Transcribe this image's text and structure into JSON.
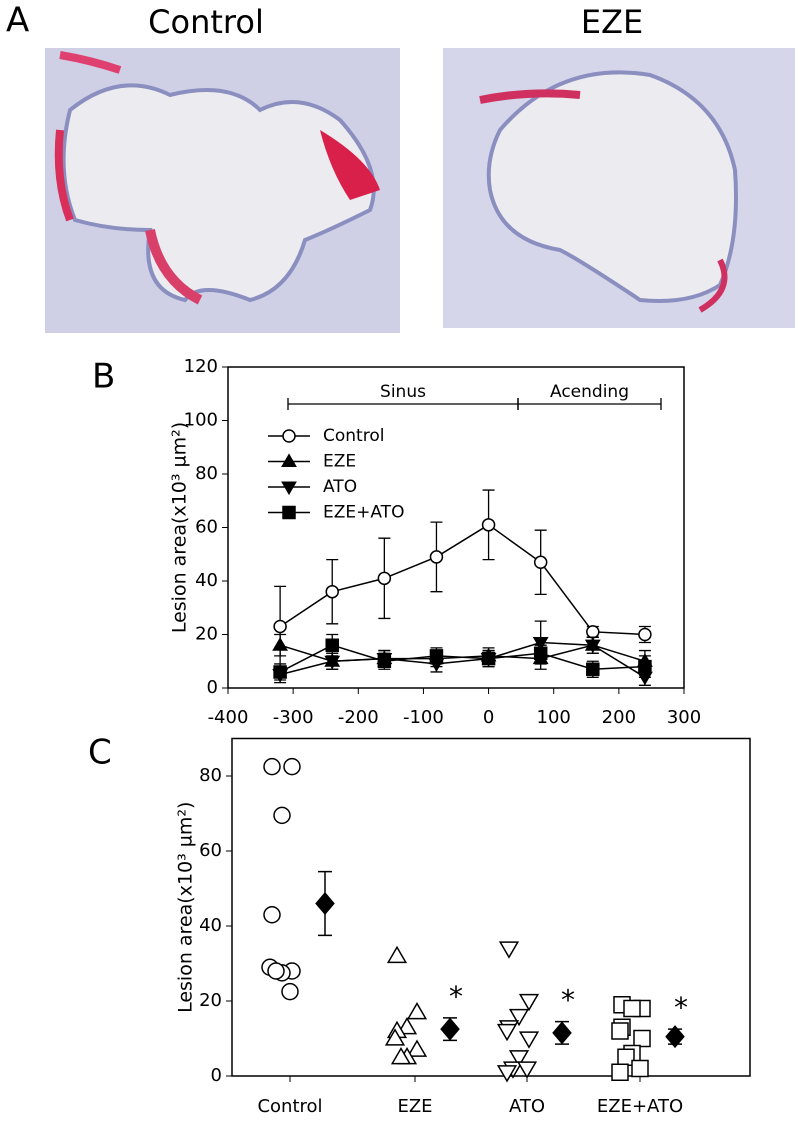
{
  "panel_a": {
    "label": "A",
    "captions": [
      "Control",
      "EZE"
    ]
  },
  "chart_data": [
    {
      "type": "line",
      "label": "B",
      "ylabel": "Lesion area(x10³ µm²)",
      "x": [
        -320,
        -240,
        -160,
        -80,
        0,
        80,
        160,
        240
      ],
      "xlim": [
        -400,
        300
      ],
      "xticks": [
        -400,
        -300,
        -200,
        -100,
        0,
        100,
        200,
        300
      ],
      "ylim": [
        0,
        120
      ],
      "yticks": [
        0,
        20,
        40,
        60,
        80,
        100,
        120
      ],
      "annotations": [
        "Sinus",
        "Acending"
      ],
      "legend": "upper left",
      "series": [
        {
          "name": "Control",
          "marker": "circle",
          "filled": false,
          "color": "#000000",
          "values": [
            23,
            36,
            41,
            49,
            61,
            47,
            21,
            20
          ],
          "errors": [
            15,
            12,
            15,
            13,
            13,
            12,
            2,
            3
          ]
        },
        {
          "name": "EZE",
          "marker": "triangle-up",
          "filled": true,
          "color": "#000000",
          "values": [
            16,
            10,
            11,
            11,
            12,
            11,
            16,
            10
          ],
          "errors": [
            4,
            3,
            3,
            3,
            3,
            4,
            3,
            4
          ]
        },
        {
          "name": "ATO",
          "marker": "triangle-down",
          "filled": true,
          "color": "#000000",
          "values": [
            5,
            10,
            11,
            9,
            11,
            17,
            16,
            4
          ],
          "errors": [
            3,
            3,
            3,
            3,
            3,
            8,
            3,
            3
          ]
        },
        {
          "name": "EZE+ATO",
          "marker": "square",
          "filled": true,
          "color": "#000000",
          "values": [
            6,
            16,
            10,
            12,
            11,
            13,
            7,
            8
          ],
          "errors": [
            3,
            4,
            3,
            3,
            3,
            3,
            3,
            4
          ]
        }
      ]
    },
    {
      "type": "dot",
      "label": "C",
      "ylabel": "Lesion area(x10³ µm²)",
      "categories": [
        "Control",
        "EZE",
        "ATO",
        "EZE+ATO"
      ],
      "ylim": [
        0,
        90
      ],
      "yticks": [
        0,
        20,
        40,
        60,
        80
      ],
      "markers": [
        "circle",
        "triangle-up",
        "triangle-down",
        "square"
      ],
      "points": [
        [
          82.5,
          82.5,
          69.5,
          43,
          29,
          28,
          27.5,
          28,
          22.5
        ],
        [
          32,
          17,
          13,
          12,
          10,
          7,
          5,
          5
        ],
        [
          34,
          20,
          16,
          13,
          12,
          10,
          5,
          2,
          2,
          1
        ],
        [
          19,
          18,
          18,
          13,
          12,
          10,
          6,
          5,
          2,
          1
        ]
      ],
      "means": [
        46,
        12.5,
        11.5,
        10.5
      ],
      "errors": [
        8.5,
        3,
        3,
        2
      ],
      "significance": [
        null,
        "*",
        "*",
        "*"
      ]
    }
  ]
}
